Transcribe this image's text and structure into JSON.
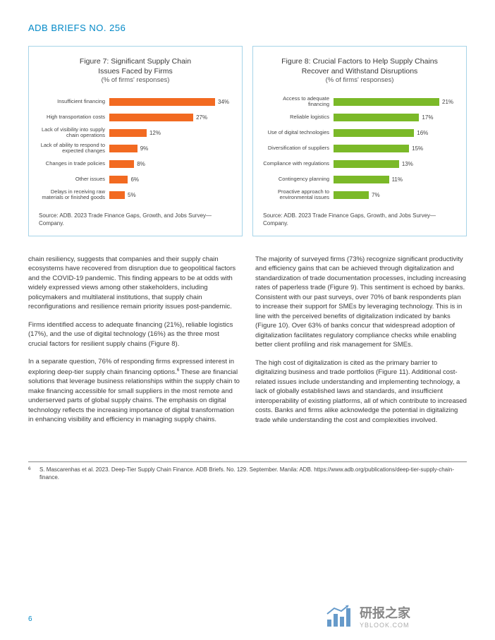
{
  "header": {
    "title": "ADB BRIEFS NO. 256"
  },
  "chart7": {
    "type": "bar",
    "title_line1": "Figure 7: Significant Supply Chain",
    "title_line2": "Issues Faced by Firms",
    "subtitle": "(% of firms' responses)",
    "bar_color": "#f26a21",
    "max_value": 34,
    "items": [
      {
        "label": "Insufficient financing",
        "value": 34,
        "display": "34%"
      },
      {
        "label": "High transportation costs",
        "value": 27,
        "display": "27%"
      },
      {
        "label": "Lack of visibility into supply chain operations",
        "value": 12,
        "display": "12%"
      },
      {
        "label": "Lack of ability to respond to expected changes",
        "value": 9,
        "display": "9%"
      },
      {
        "label": "Changes in trade policies",
        "value": 8,
        "display": "8%"
      },
      {
        "label": "Other issues",
        "value": 6,
        "display": "6%"
      },
      {
        "label": "Delays in receiving raw materials or finished goods",
        "value": 5,
        "display": "5%"
      }
    ],
    "source": "Source: ADB. 2023 Trade Finance Gaps, Growth, and Jobs Survey—Company."
  },
  "chart8": {
    "type": "bar",
    "title_line1": "Figure 8: Crucial Factors to Help Supply Chains",
    "title_line2": "Recover and Withstand Disruptions",
    "subtitle": "(% of firms' responses)",
    "bar_color": "#7bb928",
    "max_value": 21,
    "items": [
      {
        "label": "Access to adequate financing",
        "value": 21,
        "display": "21%"
      },
      {
        "label": "Reliable logistics",
        "value": 17,
        "display": "17%"
      },
      {
        "label": "Use of digital technologies",
        "value": 16,
        "display": "16%"
      },
      {
        "label": "Diversification of suppliers",
        "value": 15,
        "display": "15%"
      },
      {
        "label": "Compliance with regulations",
        "value": 13,
        "display": "13%"
      },
      {
        "label": "Contingency planning",
        "value": 11,
        "display": "11%"
      },
      {
        "label": "Proactive approach to environmental issues",
        "value": 7,
        "display": "7%"
      }
    ],
    "source": "Source: ADB. 2023 Trade Finance Gaps, Growth, and Jobs Survey—Company."
  },
  "body": {
    "left": {
      "p1": "chain resiliency, suggests that companies and their supply chain ecosystems have recovered from disruption due to geopolitical factors and the COVID-19 pandemic. This finding appears to be at odds with widely expressed views among other stakeholders, including policymakers and multilateral institutions, that supply chain reconfigurations and resilience remain priority issues post-pandemic.",
      "p2": "Firms identified access to adequate financing (21%), reliable logistics (17%), and the use of digital technology (16%) as the three most crucial factors for resilient supply chains (Figure 8).",
      "p3a": "In a separate question, 76% of responding firms expressed interest in exploring deep-tier supply chain financing options.",
      "p3sup": "6",
      "p3b": " These are financial solutions that leverage business relationships within the supply chain to make financing accessible for small suppliers in the most remote and underserved parts of global supply chains. The emphasis on digital technology reflects the increasing importance of digital transformation in enhancing visibility and efficiency in managing supply chains."
    },
    "right": {
      "p1": "The majority of surveyed firms (73%) recognize significant productivity and efficiency gains that can be achieved through digitalization and standardization of trade documentation processes, including increasing rates of paperless trade (Figure 9). This sentiment is echoed by banks. Consistent with our past surveys, over 70% of bank respondents plan to increase their support for SMEs by leveraging technology. This is in line with the perceived benefits of digitalization indicated by banks (Figure 10). Over 63% of banks concur that widespread adoption of digitalization facilitates regulatory compliance checks while enabling better client profiling and risk management for SMEs.",
      "p2": "The high cost of digitalization is cited as the primary barrier to digitalizing business and trade portfolios (Figure 11). Additional cost-related issues include understanding and implementing technology, a lack of globally established laws and standards, and insufficient interoperability of existing platforms, all of which contribute to increased costs. Banks and firms alike acknowledge the potential in digitalizing trade while understanding the cost and complexities involved."
    }
  },
  "footnote": {
    "num": "6",
    "text": "S. Mascarenhas et al. 2023. Deep-Tier Supply Chain Finance. ADB Briefs. No. 129. September. Manila: ADB. https://www.adb.org/publications/deep-tier-supply-chain-finance."
  },
  "page_number": "6",
  "watermark": {
    "cn": "研报之家",
    "en": "YBLOOK.COM",
    "bar_color": "#2670b5"
  }
}
